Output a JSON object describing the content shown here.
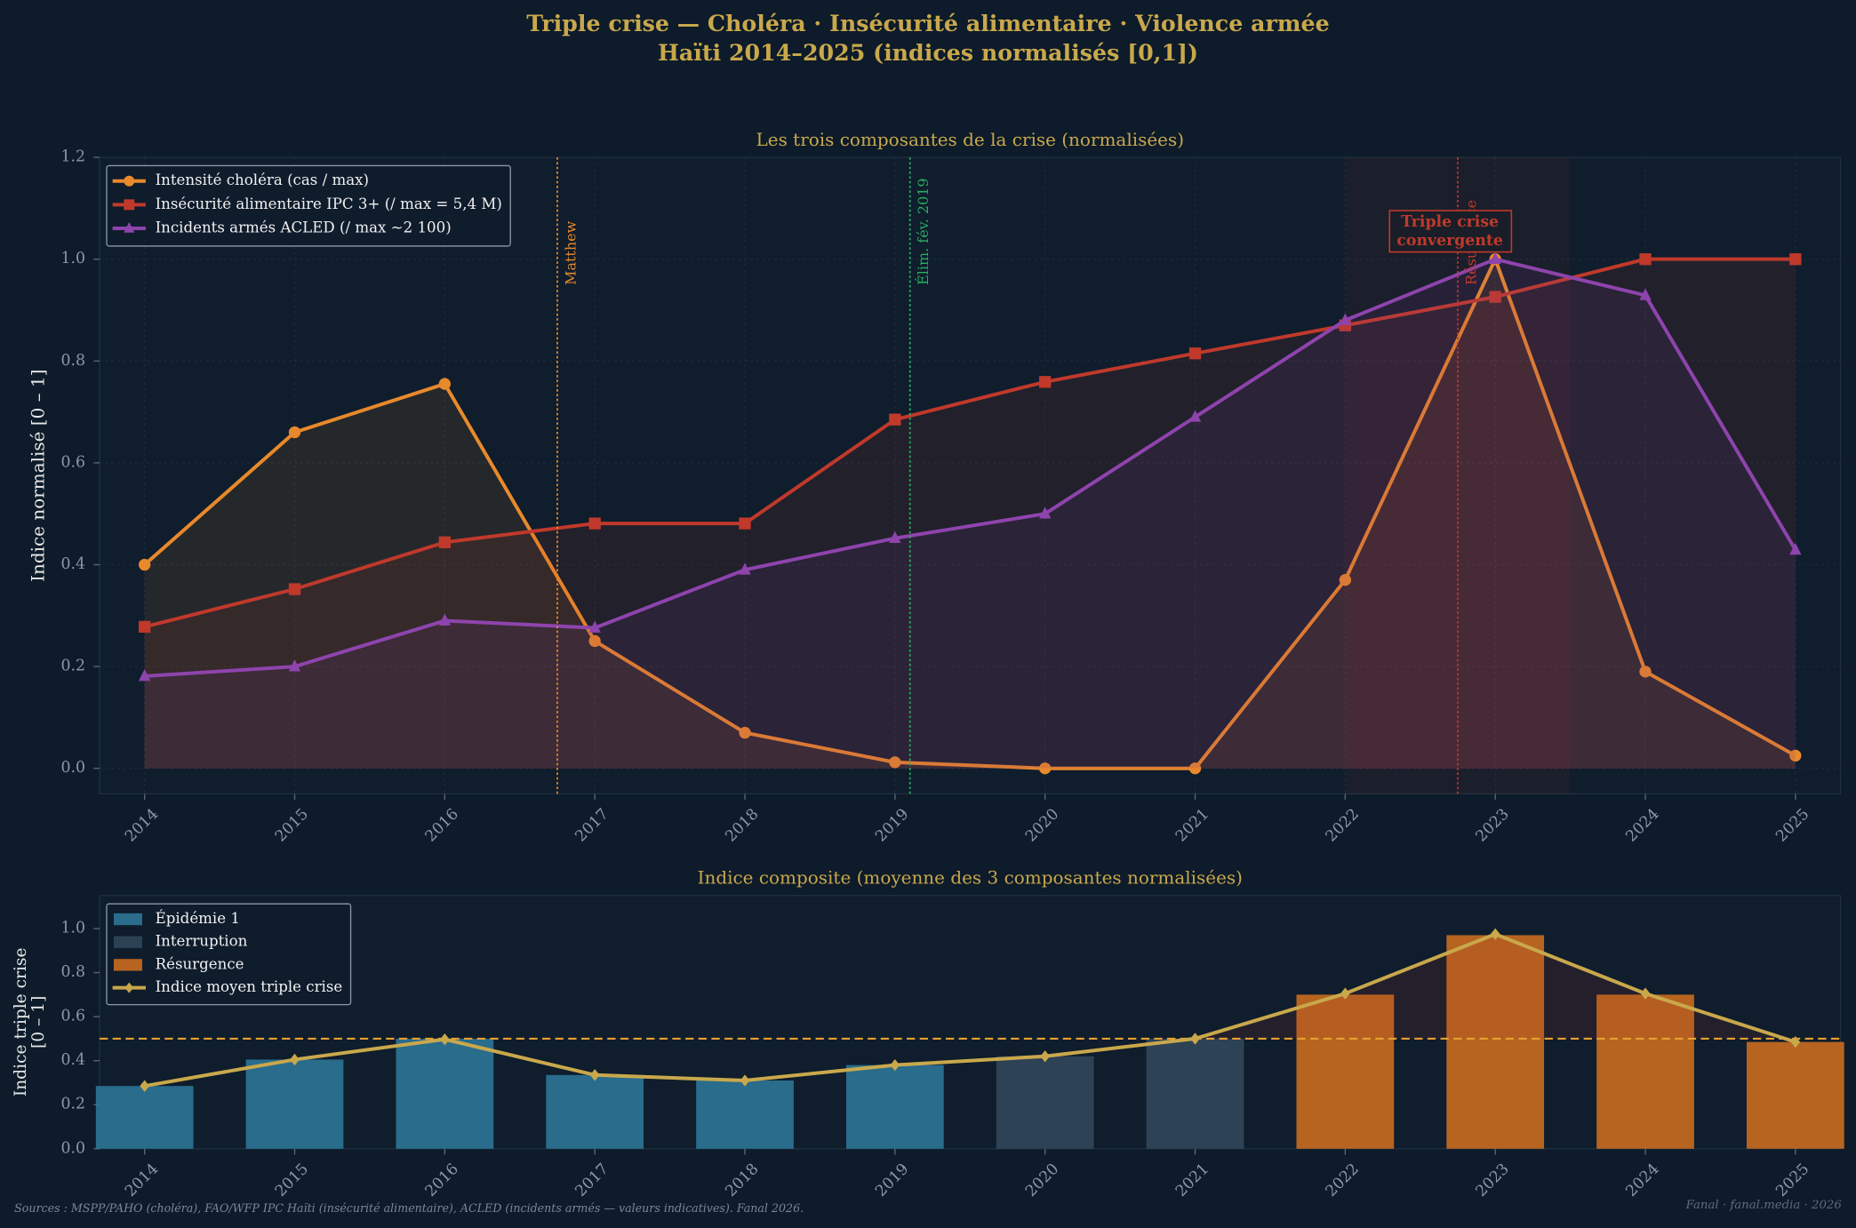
{
  "title": [
    "Triple crise — Choléra · Insécurité alimentaire · Violence armée",
    "Haïti 2014–2025 (indices normalisés [0,1])"
  ],
  "chart_data": [
    {
      "type": "line",
      "title": "Les trois composantes de la crise (normalisées)",
      "y_label": "Indice normalisé [0 – 1]",
      "x": [
        2014,
        2015,
        2016,
        2017,
        2018,
        2019,
        2020,
        2021,
        2022,
        2023,
        2024,
        2025
      ],
      "xlim": [
        2013.7,
        2025.3
      ],
      "xticks": [
        2014,
        2015,
        2016,
        2017,
        2018,
        2019,
        2020,
        2021,
        2022,
        2023,
        2024,
        2025
      ],
      "ylim": [
        -0.05,
        1.2
      ],
      "yticks": [
        {
          "value": 0,
          "label": "0.0"
        },
        {
          "value": 0.2,
          "label": "0.2"
        },
        {
          "value": 0.4,
          "label": "0.4"
        },
        {
          "value": 0.6,
          "label": "0.6"
        },
        {
          "value": 0.8,
          "label": "0.8"
        },
        {
          "value": 1,
          "label": "1.0"
        },
        {
          "value": 1.2,
          "label": "1.2"
        }
      ],
      "grid": true,
      "legend": "upper left",
      "series": [
        {
          "name": "Intensité choléra (cas / max)",
          "color": "#e8892b",
          "marker": "circle",
          "values": [
            0.4,
            0.66,
            0.755,
            0.25,
            0.07,
            0.012,
            0.0,
            0.0,
            0.37,
            1.0,
            0.19,
            0.025
          ]
        },
        {
          "name": "Insécurité alimentaire IPC 3+ (/ max = 5,4 M)",
          "color": "#c0392b",
          "marker": "square",
          "values": [
            0.278,
            0.352,
            0.444,
            0.481,
            0.481,
            0.685,
            0.759,
            0.815,
            0.87,
            0.926,
            1.0,
            1.0
          ]
        },
        {
          "name": "Incidents armés ACLED (/ max ~2 100)",
          "color": "#8e44ad",
          "marker": "triangle",
          "values": [
            0.181,
            0.2,
            0.29,
            0.276,
            0.39,
            0.452,
            0.5,
            0.69,
            0.88,
            1.0,
            0.929,
            0.429
          ]
        }
      ],
      "vlines": [
        {
          "x": 2016.75,
          "label": "Matthew",
          "color": "#e8892b"
        },
        {
          "x": 2019.1,
          "label": "Élim. fév. 2019",
          "color": "#27ae60"
        },
        {
          "x": 2022.75,
          "label": "Résurgence",
          "color": "#c0392b"
        }
      ],
      "span": [
        2022,
        2023.5
      ],
      "annotation": [
        "Triple crise",
        "convergente"
      ]
    },
    {
      "type": "bar",
      "title": "Indice composite (moyenne des 3 composantes normalisées)",
      "y_label": [
        "Indice triple crise",
        "[0 – 1]"
      ],
      "x": [
        2014,
        2015,
        2016,
        2017,
        2018,
        2019,
        2020,
        2021,
        2022,
        2023,
        2024,
        2025
      ],
      "xlim": [
        2013.7,
        2025.3
      ],
      "xticks": [
        2014,
        2015,
        2016,
        2017,
        2018,
        2019,
        2020,
        2021,
        2022,
        2023,
        2024,
        2025
      ],
      "ylim": [
        0,
        1.15
      ],
      "yticks": [
        {
          "value": 0,
          "label": "0.0"
        },
        {
          "value": 0.2,
          "label": "0.2"
        },
        {
          "value": 0.4,
          "label": "0.4"
        },
        {
          "value": 0.6,
          "label": "0.6"
        },
        {
          "value": 0.8,
          "label": "0.8"
        },
        {
          "value": 1,
          "label": "1.0"
        }
      ],
      "threshold": 0.5,
      "legend": "upper left",
      "series": [
        {
          "name": "Épidémie 1",
          "color": "#2e7a9e",
          "values": [
            0.285,
            0.405,
            0.5,
            0.335,
            0.31,
            0.38,
            null,
            null,
            null,
            null,
            null,
            null
          ]
        },
        {
          "name": "Interruption",
          "color": "#34495e",
          "values": [
            null,
            null,
            null,
            null,
            null,
            null,
            0.42,
            0.5,
            null,
            null,
            null,
            null
          ]
        },
        {
          "name": "Résurgence",
          "color": "#d4711f",
          "values": [
            null,
            null,
            null,
            null,
            null,
            null,
            null,
            null,
            0.7,
            0.97,
            0.7,
            0.485
          ]
        },
        {
          "name": "Indice moyen triple crise",
          "type": "line",
          "color": "#c9a84c",
          "marker": "diamond",
          "values": [
            0.285,
            0.405,
            0.497,
            0.335,
            0.31,
            0.38,
            0.42,
            0.5,
            0.705,
            0.975,
            0.705,
            0.485
          ]
        }
      ]
    }
  ],
  "footer": {
    "sources": "Sources : MSPP/PAHO (choléra), FAO/WFP IPC Haïti (insécurité alimentaire), ACLED (incidents armés — valeurs indicatives). Fanal 2026.",
    "credit": "Fanal · fanal.media · 2026"
  }
}
